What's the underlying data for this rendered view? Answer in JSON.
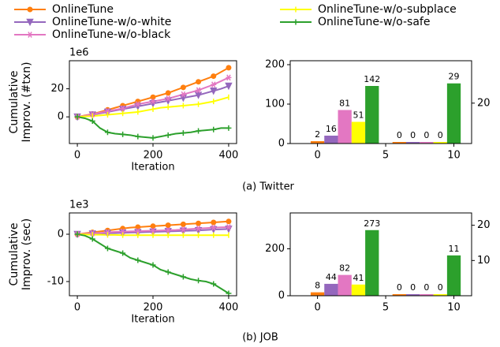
{
  "legend": [
    {
      "name": "OnlineTune",
      "color": "#ff7f0e",
      "marker": "circle"
    },
    {
      "name": "OnlineTune-w/o-white",
      "color": "#9467bd",
      "marker": "triangle"
    },
    {
      "name": "OnlineTune-w/o-black",
      "color": "#e377c2",
      "marker": "star"
    },
    {
      "name": "OnlineTune-w/o-subplace",
      "color": "#ffff00",
      "marker": "vline"
    },
    {
      "name": "OnlineTune-w/o-safe",
      "color": "#2ca02c",
      "marker": "plus"
    }
  ],
  "captions": [
    "(a) Twitter",
    "(b) JOB"
  ],
  "chart_data": [
    {
      "type": "line",
      "ylabel": [
        "Cumulative",
        "Improv. (#txn)"
      ],
      "xlabel": "Iteration",
      "offset_label": "1e6",
      "x": [
        0,
        20,
        40,
        60,
        80,
        100,
        120,
        140,
        160,
        180,
        200,
        220,
        240,
        260,
        280,
        300,
        320,
        340,
        360,
        380,
        400
      ],
      "xlim": [
        -21,
        421
      ],
      "xticks": [
        0,
        200,
        400
      ],
      "ylim": [
        -19,
        40
      ],
      "yticks": [
        0,
        20
      ],
      "series": [
        {
          "values": [
            0,
            1,
            2,
            3.5,
            5,
            6.5,
            8,
            9.5,
            11,
            12.5,
            14,
            15.5,
            17,
            19,
            21,
            23,
            25,
            27,
            29,
            32,
            35
          ]
        },
        {
          "values": [
            0,
            0.7,
            1.5,
            2.5,
            3.5,
            4.5,
            5.5,
            6.5,
            7.5,
            8.5,
            9.5,
            10.5,
            11.5,
            12.5,
            13.5,
            14.5,
            15.5,
            17,
            18.5,
            20,
            22
          ]
        },
        {
          "values": [
            0,
            0.8,
            1.8,
            3,
            4,
            5,
            6,
            7.5,
            9,
            10,
            11,
            12,
            13,
            14.5,
            16,
            17.5,
            19,
            21,
            23,
            25.5,
            28
          ]
        },
        {
          "values": [
            0,
            0.3,
            0.6,
            1,
            1.5,
            2,
            2.5,
            3,
            3.5,
            4.5,
            5.5,
            6.5,
            7,
            7.5,
            8,
            8.5,
            9,
            10,
            11,
            12.5,
            14
          ]
        },
        {
          "values": [
            0,
            -1,
            -3,
            -8,
            -11,
            -12,
            -12.5,
            -13,
            -14,
            -14.5,
            -15,
            -14,
            -13,
            -12,
            -11.5,
            -11,
            -10,
            -9.5,
            -9,
            -8,
            -8
          ]
        }
      ]
    },
    {
      "type": "bar",
      "xlim": [
        -2,
        11.3
      ],
      "xticks": [
        0,
        5,
        10
      ],
      "ylim": [
        0,
        210
      ],
      "yticks": [
        0,
        100,
        200
      ],
      "y2lim": [
        0,
        41
      ],
      "y2ticks": [
        20
      ],
      "group_axes": [
        "y",
        "y2"
      ],
      "series": [
        {
          "values": [
            2,
            0
          ]
        },
        {
          "values": [
            16,
            0
          ]
        },
        {
          "values": [
            81,
            0
          ]
        },
        {
          "values": [
            51,
            0
          ]
        },
        {
          "values": [
            142,
            29
          ]
        }
      ]
    },
    {
      "type": "line",
      "ylabel": [
        "Cumulative",
        "Improv. (sec)"
      ],
      "xlabel": "Iteration",
      "offset_label": "1e3",
      "x": [
        0,
        20,
        40,
        60,
        80,
        100,
        120,
        140,
        160,
        180,
        200,
        220,
        240,
        260,
        280,
        300,
        320,
        340,
        360,
        380,
        400
      ],
      "xlim": [
        -21,
        421
      ],
      "xticks": [
        0,
        200,
        400
      ],
      "ylim": [
        -13,
        4.5
      ],
      "yticks": [
        -10,
        0
      ],
      "series": [
        {
          "values": [
            0,
            0.2,
            0.4,
            0.6,
            0.8,
            1,
            1.2,
            1.4,
            1.5,
            1.6,
            1.7,
            1.8,
            1.9,
            2,
            2.1,
            2.2,
            2.3,
            2.4,
            2.5,
            2.6,
            2.7
          ]
        },
        {
          "values": [
            0,
            0.05,
            0.1,
            0.15,
            0.2,
            0.25,
            0.3,
            0.35,
            0.4,
            0.45,
            0.5,
            0.55,
            0.6,
            0.65,
            0.7,
            0.75,
            0.8,
            0.9,
            1,
            1.05,
            1.1
          ]
        },
        {
          "values": [
            0,
            0.1,
            0.2,
            0.3,
            0.4,
            0.5,
            0.55,
            0.6,
            0.65,
            0.7,
            0.75,
            0.8,
            0.85,
            0.9,
            1,
            1.1,
            1.2,
            1.3,
            1.4,
            1.45,
            1.5
          ]
        },
        {
          "values": [
            0,
            -0.05,
            -0.1,
            -0.1,
            -0.15,
            -0.15,
            -0.2,
            -0.2,
            -0.2,
            -0.2,
            -0.2,
            -0.2,
            -0.2,
            -0.2,
            -0.2,
            -0.2,
            -0.2,
            -0.2,
            -0.2,
            -0.2,
            -0.2
          ]
        },
        {
          "values": [
            0,
            -0.3,
            -1,
            -2,
            -3,
            -3.5,
            -4,
            -5,
            -5.5,
            -6,
            -6.5,
            -7.5,
            -8,
            -8.5,
            -9,
            -9.5,
            -9.8,
            -10,
            -10.5,
            -11.5,
            -12.5
          ]
        }
      ]
    },
    {
      "type": "bar",
      "xlim": [
        -2,
        11.3
      ],
      "xticks": [
        0,
        5,
        10
      ],
      "ylim": [
        0,
        353
      ],
      "yticks": [
        0,
        200
      ],
      "y2lim": [
        0,
        23.5
      ],
      "y2ticks": [
        10,
        20
      ],
      "group_axes": [
        "y",
        "y2"
      ],
      "series": [
        {
          "values": [
            8,
            0
          ]
        },
        {
          "values": [
            44,
            0
          ]
        },
        {
          "values": [
            82,
            0
          ]
        },
        {
          "values": [
            41,
            0
          ]
        },
        {
          "values": [
            273,
            11
          ]
        }
      ]
    }
  ]
}
